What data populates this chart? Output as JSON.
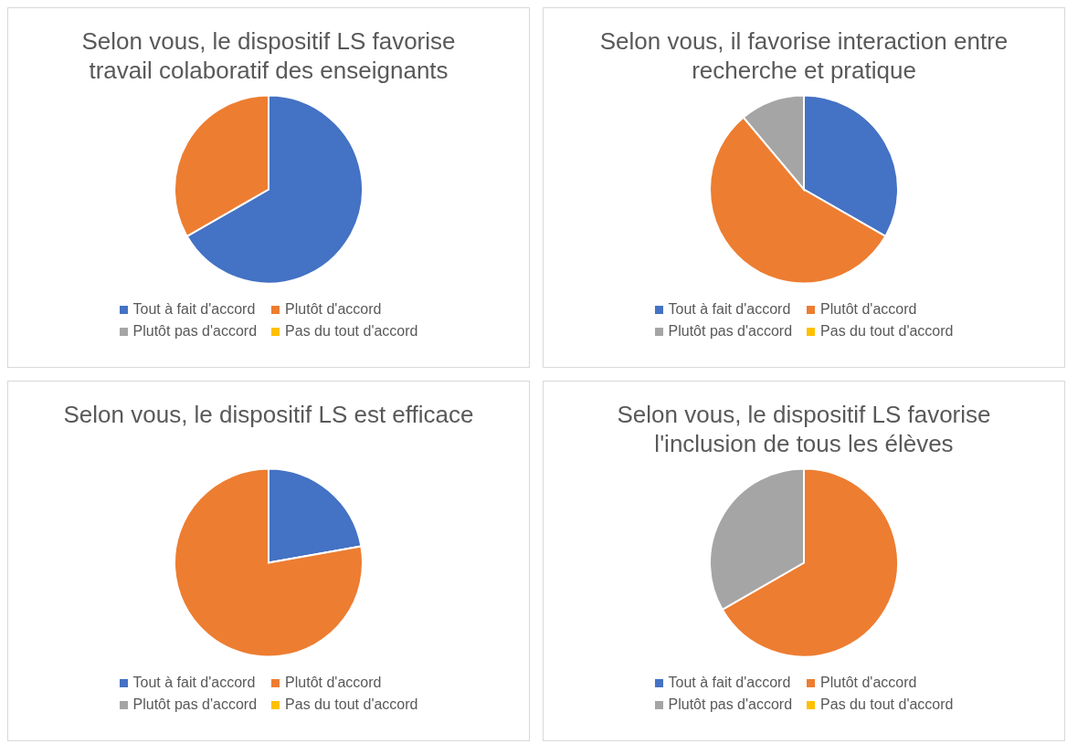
{
  "chart_data": [
    {
      "type": "pie",
      "title": "Selon vous, le dispositif LS favorise travail colaboratif des enseignants",
      "categories": [
        "Tout à fait d'accord",
        "Plutôt d'accord",
        "Plutôt pas d'accord",
        "Pas du tout d'accord"
      ],
      "values": [
        66.7,
        33.3,
        0,
        0
      ],
      "colors": [
        "#4472c4",
        "#ed7d31",
        "#a5a5a5",
        "#ffc000"
      ],
      "legend": "bottom"
    },
    {
      "type": "pie",
      "title": "Selon vous,  il favorise interaction entre recherche et pratique",
      "categories": [
        "Tout à fait d'accord",
        "Plutôt d'accord",
        "Plutôt pas d'accord",
        "Pas du tout d'accord"
      ],
      "values": [
        33.3,
        55.6,
        11.1,
        0
      ],
      "colors": [
        "#4472c4",
        "#ed7d31",
        "#a5a5a5",
        "#ffc000"
      ],
      "legend": "bottom"
    },
    {
      "type": "pie",
      "title": "Selon vous, le dispositif LS est efficace",
      "categories": [
        "Tout à fait d'accord",
        "Plutôt d'accord",
        "Plutôt pas d'accord",
        "Pas du tout d'accord"
      ],
      "values": [
        22.2,
        77.8,
        0,
        0
      ],
      "colors": [
        "#4472c4",
        "#ed7d31",
        "#a5a5a5",
        "#ffc000"
      ],
      "legend": "bottom"
    },
    {
      "type": "pie",
      "title": "Selon vous, le dispositif LS favorise l'inclusion de tous les élèves",
      "categories": [
        "Tout à fait d'accord",
        "Plutôt d'accord",
        "Plutôt pas d'accord",
        "Pas du tout d'accord"
      ],
      "values": [
        0,
        66.7,
        33.3,
        0
      ],
      "colors": [
        "#4472c4",
        "#ed7d31",
        "#a5a5a5",
        "#ffc000"
      ],
      "legend": "bottom"
    }
  ]
}
